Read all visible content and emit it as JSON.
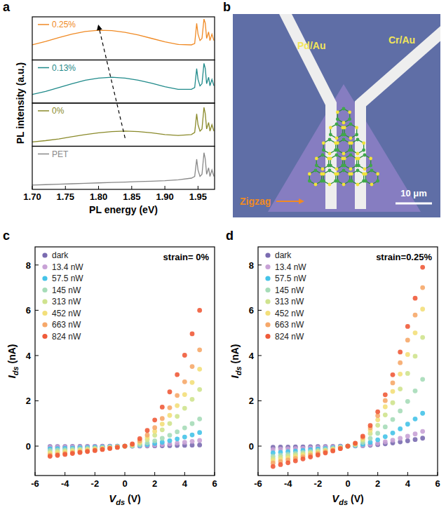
{
  "chart_data": [
    {
      "panel_label": "a",
      "type": "line",
      "xlabel": "PL energy (eV)",
      "ylabel": "PL intensity (a.u.)",
      "x": [
        1.7,
        1.72,
        1.74,
        1.76,
        1.78,
        1.8,
        1.82,
        1.84,
        1.86,
        1.88,
        1.9,
        1.92,
        1.94,
        1.945,
        1.948,
        1.95,
        1.953,
        1.956,
        1.959,
        1.961,
        1.963,
        1.966,
        1.968,
        1.971,
        1.974
      ],
      "xlim": [
        1.7,
        1.975
      ],
      "xticks": [
        {
          "value": 1.7,
          "label": "1.70"
        },
        {
          "value": 1.75,
          "label": "1.75"
        },
        {
          "value": 1.8,
          "label": "1.80"
        },
        {
          "value": 1.85,
          "label": "1.85"
        },
        {
          "value": 1.9,
          "label": "1.90"
        },
        {
          "value": 1.95,
          "label": "1.95"
        }
      ],
      "ylim": [
        0,
        1
      ],
      "tick_labels": "x",
      "series": [
        {
          "name": "0.25%",
          "color": "#f08a24",
          "values": [
            0.35,
            0.43,
            0.52,
            0.6,
            0.66,
            0.69,
            0.68,
            0.64,
            0.58,
            0.5,
            0.42,
            0.36,
            0.35,
            0.38,
            0.85,
            0.6,
            0.45,
            0.5,
            0.95,
            0.85,
            0.5,
            0.65,
            0.45,
            0.6,
            0.45
          ]
        },
        {
          "name": "0.13%",
          "color": "#1f8a8a",
          "values": [
            0.2,
            0.27,
            0.36,
            0.45,
            0.53,
            0.58,
            0.6,
            0.58,
            0.53,
            0.46,
            0.38,
            0.32,
            0.32,
            0.36,
            0.8,
            0.55,
            0.4,
            0.45,
            0.92,
            0.8,
            0.45,
            0.6,
            0.4,
            0.55,
            0.4
          ]
        },
        {
          "name": "0%",
          "color": "#8a8a2a",
          "values": [
            0.1,
            0.13,
            0.17,
            0.22,
            0.27,
            0.31,
            0.34,
            0.35,
            0.34,
            0.31,
            0.27,
            0.25,
            0.27,
            0.32,
            0.75,
            0.5,
            0.35,
            0.4,
            0.9,
            0.75,
            0.4,
            0.55,
            0.35,
            0.5,
            0.35
          ]
        },
        {
          "name": "PET",
          "color": "#888888",
          "values": [
            0.1,
            0.11,
            0.12,
            0.13,
            0.14,
            0.15,
            0.16,
            0.17,
            0.18,
            0.19,
            0.2,
            0.22,
            0.26,
            0.3,
            0.7,
            0.45,
            0.3,
            0.35,
            0.85,
            0.7,
            0.35,
            0.5,
            0.3,
            0.45,
            0.3
          ]
        }
      ]
    },
    {
      "panel_label": "b",
      "type": "image",
      "labels": [
        "Pd/Au",
        "Cr/Au"
      ],
      "annotation": "Zigzag",
      "scale_bar": "10 μm"
    },
    {
      "panel_label": "c",
      "type": "scatter",
      "marker": "circle",
      "legend": "upper left",
      "annotation": "strain= 0%",
      "xlabel": {
        "text": "V",
        "subscript": "ds",
        "unit": "(V)"
      },
      "ylabel": {
        "text": "I",
        "subscript": "ds",
        "unit": "(nA)"
      },
      "x": [
        -5,
        -4.5,
        -4,
        -3.5,
        -3,
        -2.5,
        -2,
        -1.5,
        -1,
        -0.5,
        0,
        0.5,
        1,
        1.5,
        2,
        2.5,
        3,
        3.5,
        4,
        4.5,
        5
      ],
      "xlim": [
        -6,
        6
      ],
      "xticks": [
        -6,
        -4,
        -2,
        0,
        2,
        4,
        6
      ],
      "ylim": [
        -1.3,
        8.8
      ],
      "yticks": [
        0,
        2,
        4,
        6,
        8
      ],
      "series": [
        {
          "name": "dark",
          "color": "#7a6bb0",
          "values": [
            -0.02,
            -0.018,
            -0.016,
            -0.015,
            -0.013,
            -0.011,
            -0.009,
            -0.007,
            -0.005,
            -0.003,
            0,
            0.001,
            0.003,
            0.006,
            0.01,
            0.014,
            0.02,
            0.026,
            0.033,
            0.041,
            0.05
          ]
        },
        {
          "name": "13.4 nW",
          "color": "#c8a2d6",
          "values": [
            -0.05,
            -0.045,
            -0.041,
            -0.036,
            -0.032,
            -0.027,
            -0.022,
            -0.017,
            -0.012,
            -0.006,
            0,
            0.004,
            0.014,
            0.029,
            0.048,
            0.072,
            0.1,
            0.132,
            0.167,
            0.207,
            0.25
          ]
        },
        {
          "name": "57.5 nW",
          "color": "#45c3e8",
          "values": [
            -0.12,
            -0.109,
            -0.098,
            -0.087,
            -0.076,
            -0.064,
            -0.053,
            -0.041,
            -0.028,
            -0.015,
            0,
            0.01,
            0.033,
            0.069,
            0.115,
            0.172,
            0.239,
            0.316,
            0.401,
            0.496,
            0.6
          ]
        },
        {
          "name": "145 nW",
          "color": "#a6dcb8",
          "values": [
            -0.2,
            -0.182,
            -0.164,
            -0.145,
            -0.126,
            -0.107,
            -0.088,
            -0.068,
            -0.047,
            -0.025,
            0,
            0.019,
            0.066,
            0.138,
            0.23,
            0.344,
            0.479,
            0.631,
            0.803,
            0.992,
            1.2
          ]
        },
        {
          "name": "313 nW",
          "color": "#cfe38e",
          "values": [
            -0.28,
            -0.255,
            -0.229,
            -0.203,
            -0.177,
            -0.15,
            -0.123,
            -0.095,
            -0.066,
            -0.035,
            0,
            0.04,
            0.138,
            0.288,
            0.48,
            0.718,
            0.998,
            1.315,
            1.673,
            2.068,
            2.5
          ]
        },
        {
          "name": "452 nW",
          "color": "#f3df7a",
          "values": [
            -0.33,
            -0.3,
            -0.27,
            -0.239,
            -0.208,
            -0.177,
            -0.145,
            -0.112,
            -0.078,
            -0.042,
            0,
            0.054,
            0.187,
            0.391,
            0.653,
            0.976,
            1.357,
            1.788,
            2.275,
            2.812,
            3.4
          ]
        },
        {
          "name": "663 nW",
          "color": "#f6a86a",
          "values": [
            -0.4,
            -0.364,
            -0.327,
            -0.29,
            -0.252,
            -0.214,
            -0.175,
            -0.135,
            -0.094,
            -0.05,
            0,
            0.068,
            0.234,
            0.489,
            0.816,
            1.22,
            1.696,
            2.236,
            2.843,
            3.515,
            4.25
          ]
        },
        {
          "name": "824 nW",
          "color": "#ef5b3a",
          "values": [
            -0.45,
            -0.409,
            -0.368,
            -0.326,
            -0.284,
            -0.241,
            -0.197,
            -0.152,
            -0.106,
            -0.057,
            0,
            0.096,
            0.33,
            0.69,
            1.152,
            1.722,
            2.394,
            3.156,
            4.014,
            4.962,
            6
          ]
        }
      ]
    },
    {
      "panel_label": "d",
      "type": "scatter",
      "marker": "circle",
      "legend": "upper left",
      "annotation": "strain=0.25%",
      "xlabel": {
        "text": "V",
        "subscript": "ds",
        "unit": "(V)"
      },
      "ylabel": {
        "text": "I",
        "subscript": "ds",
        "unit": "(nA)"
      },
      "x": [
        -5,
        -4.5,
        -4,
        -3.5,
        -3,
        -2.5,
        -2,
        -1.5,
        -1,
        -0.5,
        0,
        0.5,
        1,
        1.5,
        2,
        2.5,
        3,
        3.5,
        4,
        4.5,
        5
      ],
      "xlim": [
        -6,
        6
      ],
      "xticks": [
        -6,
        -4,
        -2,
        0,
        2,
        4,
        6
      ],
      "ylim": [
        -1.3,
        8.8
      ],
      "yticks": [
        0,
        2,
        4,
        6,
        8
      ],
      "series": [
        {
          "name": "dark",
          "color": "#7a6bb0",
          "values": [
            -0.05,
            -0.045,
            -0.041,
            -0.036,
            -0.032,
            -0.027,
            -0.022,
            -0.017,
            -0.012,
            -0.006,
            0,
            0.006,
            0.019,
            0.04,
            0.067,
            0.1,
            0.14,
            0.184,
            0.234,
            0.289,
            0.35
          ]
        },
        {
          "name": "13.4 nW",
          "color": "#c8a2d6",
          "values": [
            -0.15,
            -0.136,
            -0.123,
            -0.109,
            -0.095,
            -0.08,
            -0.066,
            -0.051,
            -0.035,
            -0.019,
            0,
            0.01,
            0.036,
            0.075,
            0.125,
            0.187,
            0.259,
            0.342,
            0.435,
            0.538,
            0.65
          ]
        },
        {
          "name": "57.5 nW",
          "color": "#45c3e8",
          "values": [
            -0.3,
            -0.273,
            -0.245,
            -0.218,
            -0.189,
            -0.161,
            -0.131,
            -0.101,
            -0.071,
            -0.038,
            0,
            0.023,
            0.08,
            0.167,
            0.278,
            0.416,
            0.579,
            0.763,
            0.97,
            1.199,
            1.45
          ]
        },
        {
          "name": "145 nW",
          "color": "#a6dcb8",
          "values": [
            -0.45,
            -0.409,
            -0.368,
            -0.326,
            -0.284,
            -0.241,
            -0.197,
            -0.152,
            -0.106,
            -0.057,
            0,
            0.047,
            0.162,
            0.339,
            0.566,
            0.847,
            1.177,
            1.552,
            1.974,
            2.44,
            2.95
          ]
        },
        {
          "name": "313 nW",
          "color": "#cfe38e",
          "values": [
            -0.55,
            -0.5,
            -0.45,
            -0.399,
            -0.347,
            -0.295,
            -0.241,
            -0.186,
            -0.129,
            -0.069,
            0,
            0.077,
            0.264,
            0.552,
            0.922,
            1.378,
            1.915,
            2.525,
            3.211,
            3.97,
            4.8
          ]
        },
        {
          "name": "452 nW",
          "color": "#f3df7a",
          "values": [
            -0.65,
            -0.591,
            -0.532,
            -0.471,
            -0.41,
            -0.348,
            -0.285,
            -0.22,
            -0.153,
            -0.082,
            0,
            0.097,
            0.333,
            0.696,
            1.162,
            1.736,
            2.414,
            3.182,
            4.047,
            5.003,
            6.05
          ]
        },
        {
          "name": "663 nW",
          "color": "#f6a86a",
          "values": [
            -0.75,
            -0.682,
            -0.614,
            -0.544,
            -0.473,
            -0.402,
            -0.329,
            -0.254,
            -0.176,
            -0.095,
            0,
            0.112,
            0.385,
            0.805,
            1.344,
            2.009,
            2.793,
            3.682,
            4.683,
            5.789,
            7
          ]
        },
        {
          "name": "824 nW",
          "color": "#ef5b3a",
          "values": [
            -0.9,
            -0.818,
            -0.736,
            -0.653,
            -0.568,
            -0.482,
            -0.394,
            -0.304,
            -0.212,
            -0.113,
            0,
            0.126,
            0.435,
            0.909,
            1.517,
            2.267,
            3.152,
            4.155,
            5.285,
            6.533,
            7.9
          ]
        }
      ]
    }
  ]
}
